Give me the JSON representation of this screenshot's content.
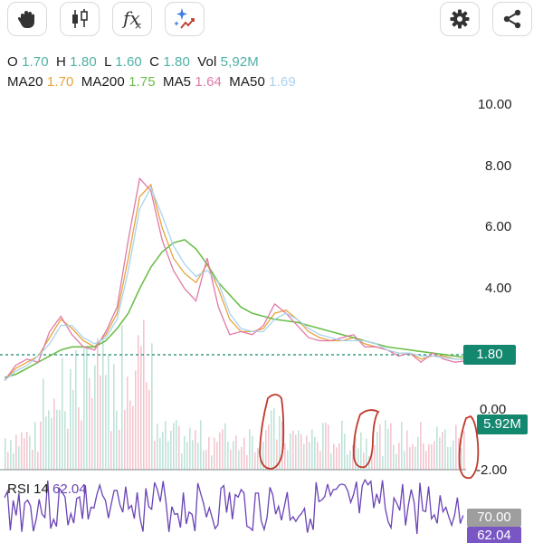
{
  "toolbar": {
    "draw_icon": "hand-icon",
    "candles_icon": "candlestick-icon",
    "indicators_label": "fx",
    "ai_icon": "sparkle-chart-icon",
    "settings_icon": "gear-icon",
    "share_icon": "share-icon"
  },
  "ohlc": {
    "o_label": "O",
    "o_value": "1.70",
    "h_label": "H",
    "h_value": "1.80",
    "l_label": "L",
    "l_value": "1.60",
    "c_label": "C",
    "c_value": "1.80",
    "vol_label": "Vol",
    "vol_value": "5,92M"
  },
  "ma": {
    "ma20_label": "MA20",
    "ma20_value": "1.70",
    "ma200_label": "MA200",
    "ma200_value": "1.75",
    "ma5_label": "MA5",
    "ma5_value": "1.64",
    "ma50_label": "MA50",
    "ma50_value": "1.69"
  },
  "colors": {
    "up": "#14876f",
    "ma20": "#e8a33a",
    "ma200": "#6dbf4b",
    "ma5": "#e07aa8",
    "ma50": "#a9d3ef",
    "rsi": "#6a43b6",
    "annotation": "#c0392b"
  },
  "axis": {
    "y_ticks": [
      "10.00",
      "8.00",
      "6.00",
      "4.00"
    ],
    "vol_ticks": [
      "0.00",
      "-2.00"
    ]
  },
  "badges": {
    "price": "1.80",
    "volume": "5.92M",
    "rsi_level": "70.00",
    "rsi_value": "62.04"
  },
  "rsi": {
    "label": "RSI 14",
    "value": "62.04"
  },
  "chart_data": {
    "type": "line",
    "title": "",
    "xlabel": "",
    "ylabel": "",
    "ylim": [
      0,
      10.5
    ],
    "y_ticks": [
      4,
      6,
      8,
      10
    ],
    "current_price": 1.8,
    "series": [
      {
        "name": "MA20",
        "values": [
          1.0,
          1.4,
          1.6,
          1.8,
          2.4,
          3.0,
          2.7,
          2.3,
          2.1,
          2.5,
          3.2,
          5.0,
          7.0,
          7.4,
          6.0,
          5.0,
          4.5,
          4.2,
          4.8,
          4.0,
          3.0,
          2.6,
          2.6,
          2.7,
          3.2,
          3.3,
          3.0,
          2.6,
          2.4,
          2.3,
          2.3,
          2.4,
          2.2,
          2.1,
          2.0,
          1.9,
          1.9,
          1.7,
          1.8,
          1.8,
          1.7,
          1.7
        ]
      },
      {
        "name": "MA200",
        "values": [
          1.1,
          1.2,
          1.4,
          1.6,
          1.8,
          2.0,
          2.1,
          2.1,
          2.1,
          2.3,
          2.7,
          3.2,
          4.0,
          4.7,
          5.2,
          5.5,
          5.6,
          5.3,
          4.8,
          4.2,
          3.8,
          3.4,
          3.2,
          3.1,
          3.0,
          2.95,
          2.9,
          2.8,
          2.7,
          2.6,
          2.5,
          2.4,
          2.3,
          2.2,
          2.1,
          2.05,
          2.0,
          1.95,
          1.9,
          1.85,
          1.8,
          1.75
        ]
      },
      {
        "name": "MA5",
        "values": [
          1.0,
          1.5,
          1.7,
          1.6,
          2.6,
          3.1,
          2.5,
          2.1,
          2.0,
          2.6,
          3.4,
          5.6,
          7.6,
          7.2,
          5.6,
          4.6,
          4.0,
          3.6,
          5.0,
          3.4,
          2.5,
          2.6,
          2.5,
          2.8,
          3.5,
          3.2,
          2.8,
          2.4,
          2.3,
          2.3,
          2.4,
          2.5,
          2.1,
          2.1,
          2.0,
          1.8,
          1.9,
          1.6,
          1.9,
          1.7,
          1.6,
          1.64
        ]
      },
      {
        "name": "MA50",
        "values": [
          1.0,
          1.3,
          1.5,
          1.8,
          2.2,
          2.8,
          2.8,
          2.4,
          2.2,
          2.4,
          3.0,
          4.6,
          6.6,
          7.3,
          6.4,
          5.4,
          4.8,
          4.4,
          4.6,
          4.2,
          3.2,
          2.7,
          2.6,
          2.6,
          3.0,
          3.2,
          3.0,
          2.7,
          2.5,
          2.4,
          2.3,
          2.3,
          2.3,
          2.2,
          2.0,
          1.9,
          1.9,
          1.8,
          1.8,
          1.75,
          1.7,
          1.69
        ]
      }
    ],
    "volume_ylim": [
      -2.0,
      0.0
    ],
    "volume_ticks": [
      0.0,
      -2.0
    ],
    "current_volume": "5.92M",
    "rsi_period": 14,
    "rsi_value": 62.04,
    "rsi_level": 70
  }
}
